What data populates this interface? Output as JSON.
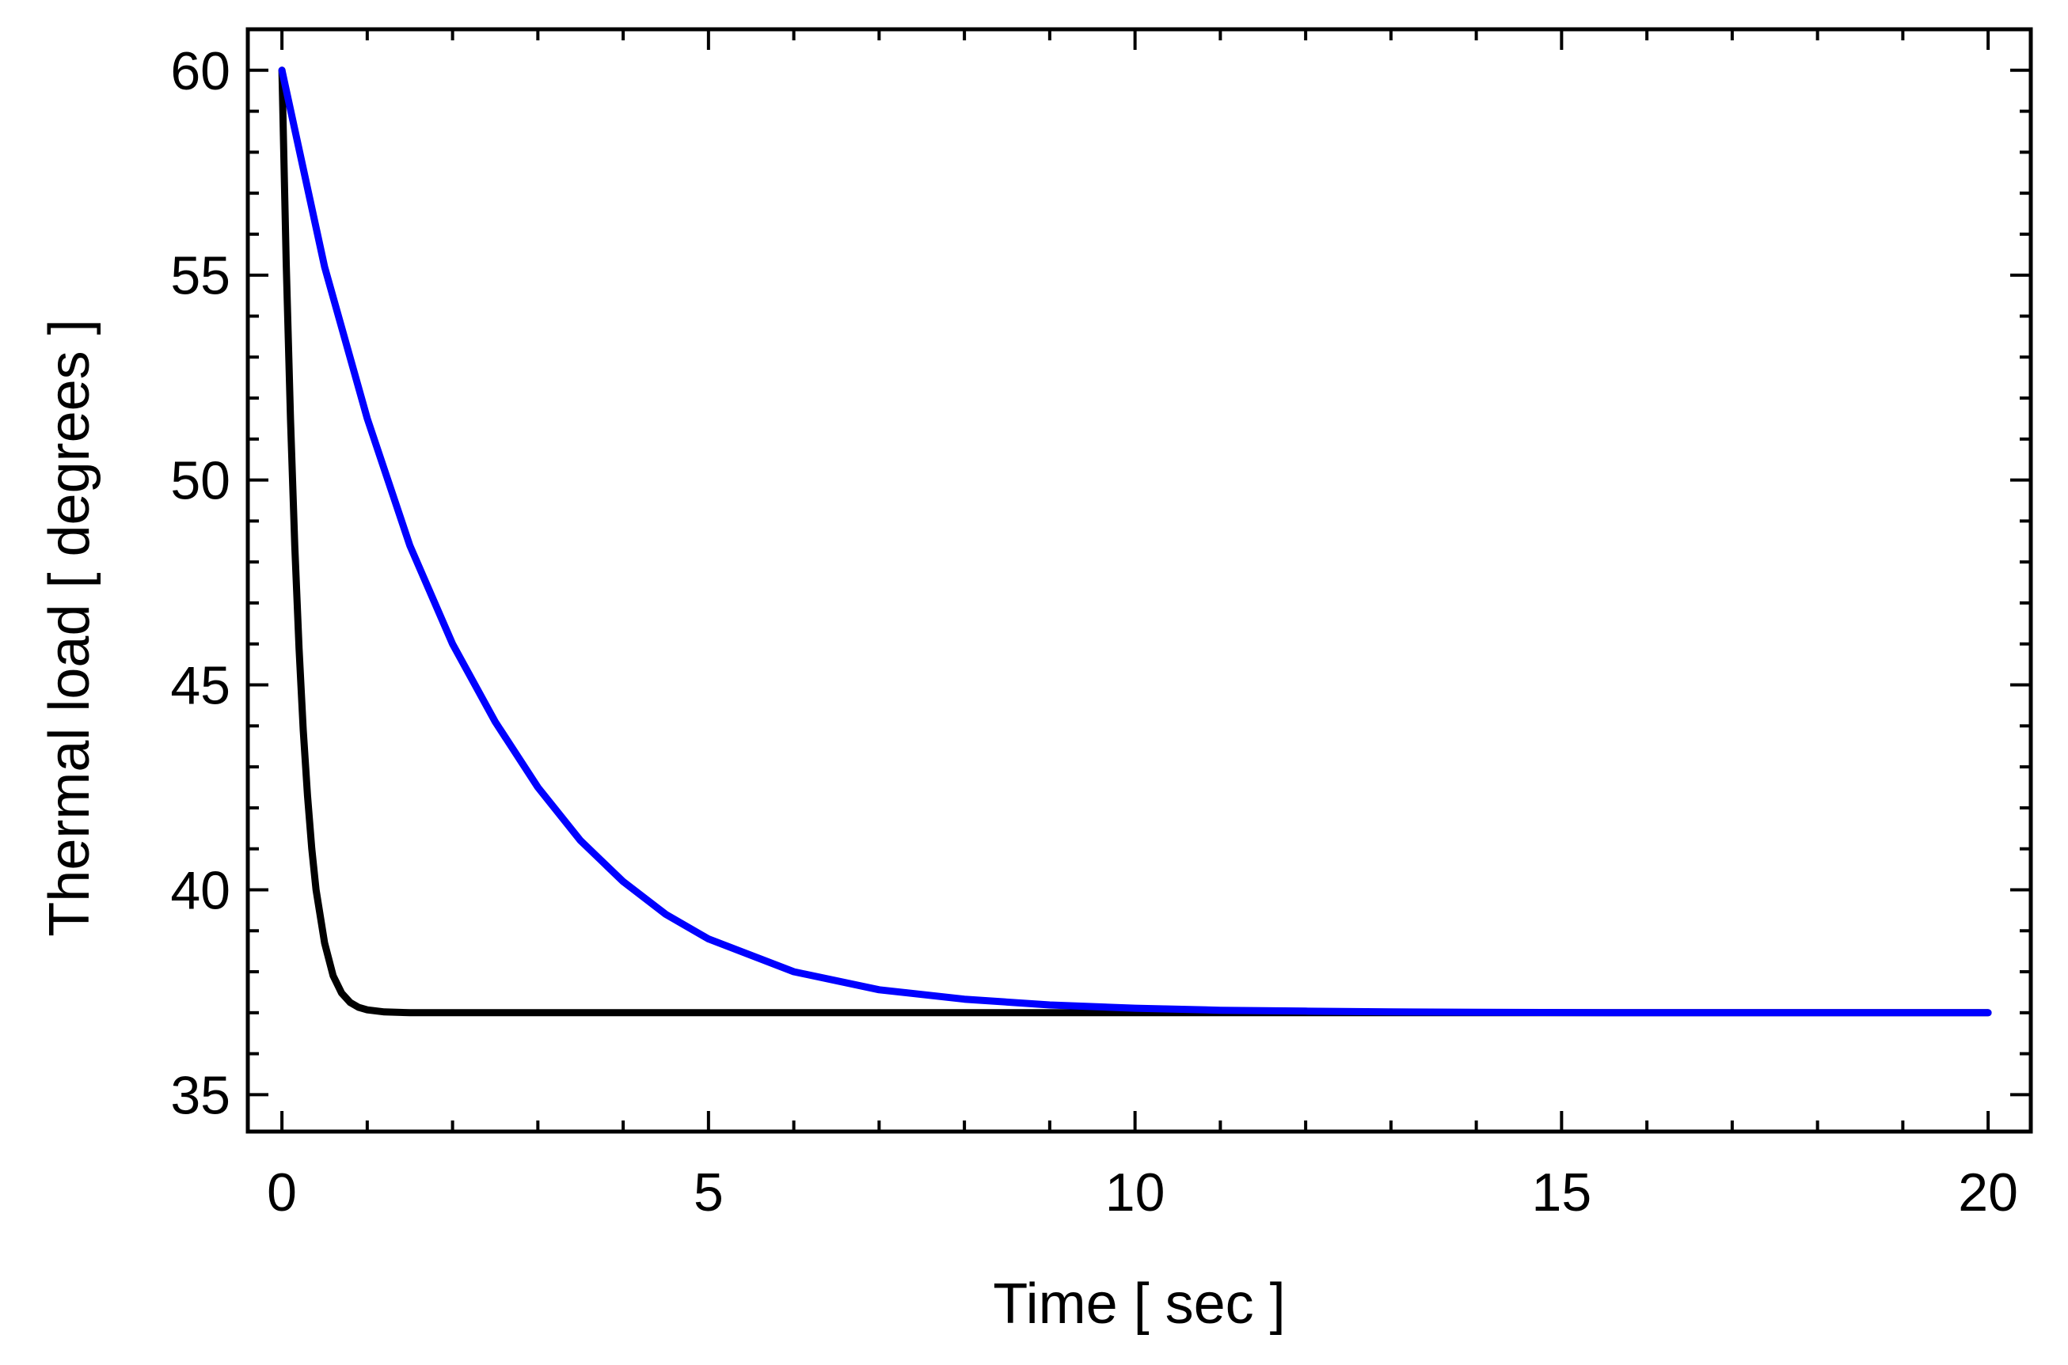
{
  "chart_data": {
    "type": "line",
    "xlabel": "Time [ sec ]",
    "ylabel": "Thermal  load [ degrees ]",
    "xlim": [
      -0.4,
      20.5
    ],
    "ylim": [
      34.1,
      61
    ],
    "x_ticks": [
      0,
      5,
      10,
      15,
      20
    ],
    "y_ticks": [
      35,
      40,
      45,
      50,
      55,
      60
    ],
    "x_minor_step": 1,
    "y_minor_step": 1,
    "grid": false,
    "frame": "box with ticks on all four sides",
    "series": [
      {
        "color": "#000000",
        "x": [
          0,
          0.05,
          0.1,
          0.15,
          0.2,
          0.25,
          0.3,
          0.35,
          0.4,
          0.5,
          0.6,
          0.7,
          0.8,
          0.9,
          1.0,
          1.2,
          1.5,
          2,
          3,
          4,
          6,
          8,
          10,
          14,
          20
        ],
        "y": [
          60,
          55.3,
          51.5,
          48.4,
          45.9,
          43.9,
          42.3,
          41.0,
          40.0,
          38.7,
          37.9,
          37.48,
          37.25,
          37.13,
          37.07,
          37.02,
          37.0,
          37.0,
          37.0,
          37.0,
          37.0,
          37.0,
          37.0,
          37.0,
          37.0
        ]
      },
      {
        "color": "#0000ff",
        "x": [
          0,
          0.5,
          1,
          1.5,
          2,
          2.5,
          3,
          3.5,
          4,
          4.5,
          5,
          6,
          7,
          8,
          9,
          10,
          11,
          12,
          13,
          14,
          16,
          18,
          20
        ],
        "y": [
          60,
          55.2,
          51.5,
          48.4,
          46.0,
          44.1,
          42.5,
          41.2,
          40.2,
          39.4,
          38.8,
          38.0,
          37.56,
          37.33,
          37.19,
          37.11,
          37.06,
          37.04,
          37.02,
          37.01,
          37.0,
          37.0,
          37.0
        ]
      }
    ]
  }
}
